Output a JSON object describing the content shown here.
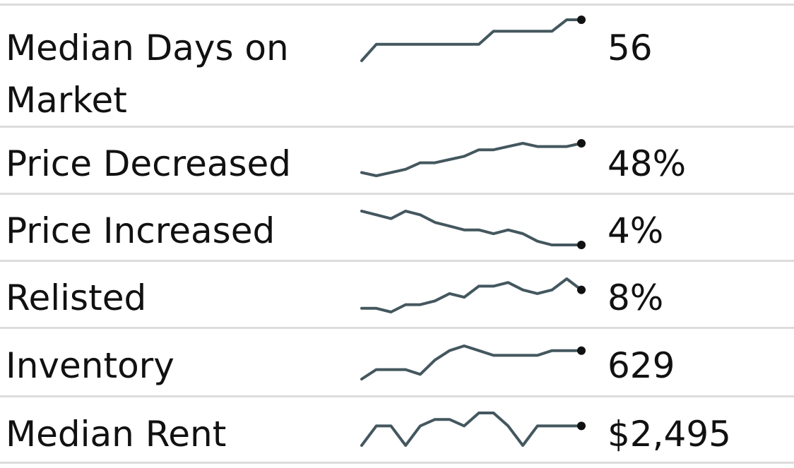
{
  "chart_data": {
    "type": "table",
    "rows": [
      {
        "label": "Median Days on Market",
        "value": "56",
        "sparkline": [
          10,
          20,
          20,
          20,
          20,
          20,
          20,
          20,
          20,
          28,
          28,
          28,
          28,
          28,
          35,
          35
        ]
      },
      {
        "label": "Price Decreased",
        "value": "48%",
        "sparkline": [
          1,
          0,
          1,
          2,
          4,
          4,
          5,
          6,
          8,
          8,
          9,
          10,
          9,
          9,
          9,
          10
        ]
      },
      {
        "label": "Price Increased",
        "value": "4%",
        "sparkline": [
          10,
          9,
          8,
          10,
          9,
          7,
          6,
          5,
          5,
          4,
          5,
          4,
          2,
          1,
          1,
          1
        ]
      },
      {
        "label": "Relisted",
        "value": "8%",
        "sparkline": [
          1,
          1,
          0,
          2,
          2,
          3,
          5,
          4,
          7,
          7,
          8,
          6,
          5,
          6,
          9,
          6
        ]
      },
      {
        "label": "Inventory",
        "value": "629",
        "sparkline": [
          0,
          2,
          2,
          2,
          1,
          4,
          6,
          7,
          6,
          5,
          5,
          5,
          5,
          6,
          6,
          6
        ]
      },
      {
        "label": "Median Rent",
        "value": "$2,495",
        "sparkline": [
          0,
          3,
          3,
          0,
          3,
          4,
          4,
          3,
          5,
          5,
          3,
          0,
          3,
          3,
          3,
          3
        ]
      }
    ]
  }
}
